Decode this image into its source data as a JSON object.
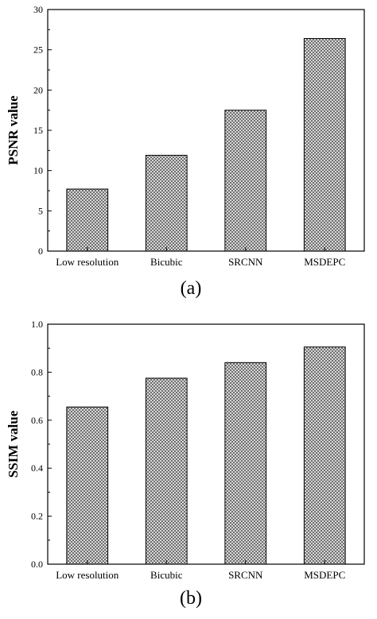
{
  "chart_data": [
    {
      "type": "bar",
      "categories": [
        "Low resolution",
        "Bicubic",
        "SRCNN",
        "MSDEPC"
      ],
      "values": [
        7.7,
        11.9,
        17.5,
        26.4
      ],
      "ylabel": "PSNR value",
      "ylim": [
        0,
        30
      ],
      "yticks": [
        0,
        5,
        10,
        15,
        20,
        25,
        30
      ],
      "ytick_labels": [
        "0",
        "5",
        "10",
        "15",
        "20",
        "25",
        "30"
      ],
      "panel_label": "(a)",
      "grid": false
    },
    {
      "type": "bar",
      "categories": [
        "Low resolution",
        "Bicubic",
        "SRCNN",
        "MSDEPC"
      ],
      "values": [
        0.655,
        0.775,
        0.84,
        0.905
      ],
      "ylabel": "SSIM value",
      "ylim": [
        0,
        1.0
      ],
      "yticks": [
        0,
        0.2,
        0.4,
        0.6,
        0.8,
        1.0
      ],
      "ytick_labels": [
        "0.0",
        "0.2",
        "0.4",
        "0.6",
        "0.8",
        "1.0"
      ],
      "panel_label": "(b)",
      "grid": false
    }
  ],
  "colors": {
    "axis": "#000000",
    "bar_fill_pattern": "crosshatch-gray"
  }
}
